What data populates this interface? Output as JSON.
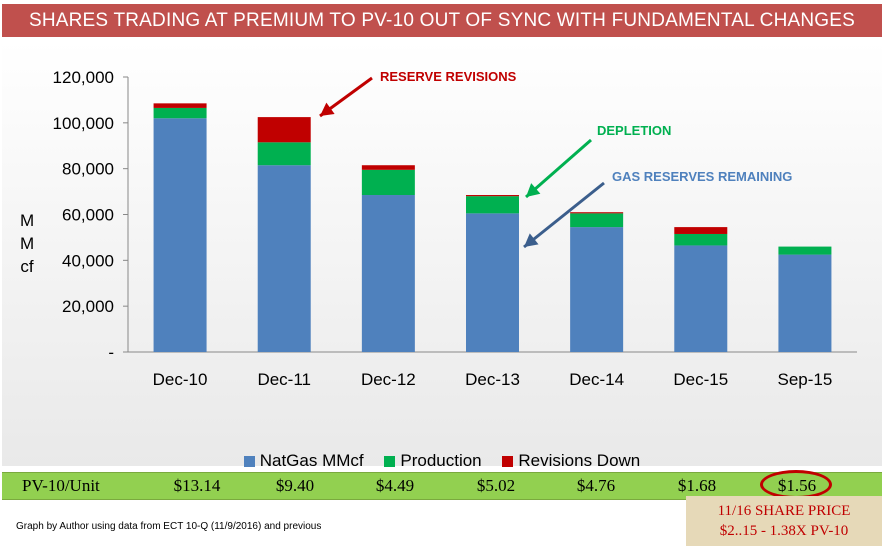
{
  "title": "SHARES TRADING AT PREMIUM TO PV-10 OUT OF SYNC WITH FUNDAMENTAL CHANGES",
  "colors": {
    "natgas": "#4f81bd",
    "production": "#00b050",
    "revisions": "#c00000",
    "title_bar": "#c0504d",
    "depletion_text": "#00b050",
    "gas_text": "#4f81bd",
    "revision_text": "#c00000"
  },
  "chart_data": {
    "type": "bar",
    "stacked": true,
    "categories": [
      "Dec-10",
      "Dec-11",
      "Dec-12",
      "Dec-13",
      "Dec-14",
      "Dec-15",
      "Sep-15"
    ],
    "series": [
      {
        "name": "NatGas MMcf",
        "values": [
          102000,
          81500,
          68500,
          60500,
          54500,
          46500,
          42500
        ]
      },
      {
        "name": "Production",
        "values": [
          4500,
          10000,
          11000,
          7500,
          6000,
          5000,
          3500
        ]
      },
      {
        "name": "Revisions Down",
        "values": [
          2000,
          11000,
          2000,
          500,
          500,
          3000,
          0
        ]
      }
    ],
    "ylabel": "MMcf",
    "ylim": [
      0,
      120000
    ],
    "yticks": [
      0,
      20000,
      40000,
      60000,
      80000,
      100000,
      120000
    ],
    "ytick_labels": [
      "-",
      "20,000",
      "40,000",
      "60,000",
      "80,000",
      "100,000",
      "120,000"
    ],
    "legend": "bottom",
    "annotations": {
      "reserve_revisions": "RESERVE REVISIONS",
      "depletion": "DEPLETION",
      "gas_reserves": "GAS RESERVES REMAINING"
    }
  },
  "pv10": {
    "label": "PV-10/Unit",
    "values": [
      "$13.14",
      "$9.40",
      "$4.49",
      "$5.02",
      "$4.76",
      "$1.68",
      "$1.56"
    ]
  },
  "footnote": "Graph by Author using data from ECT 10-Q (11/9/2016) and previous",
  "share_price": {
    "line1": "11/16 SHARE  PRICE",
    "line2": "$2..15 - 1.38X PV-10"
  }
}
